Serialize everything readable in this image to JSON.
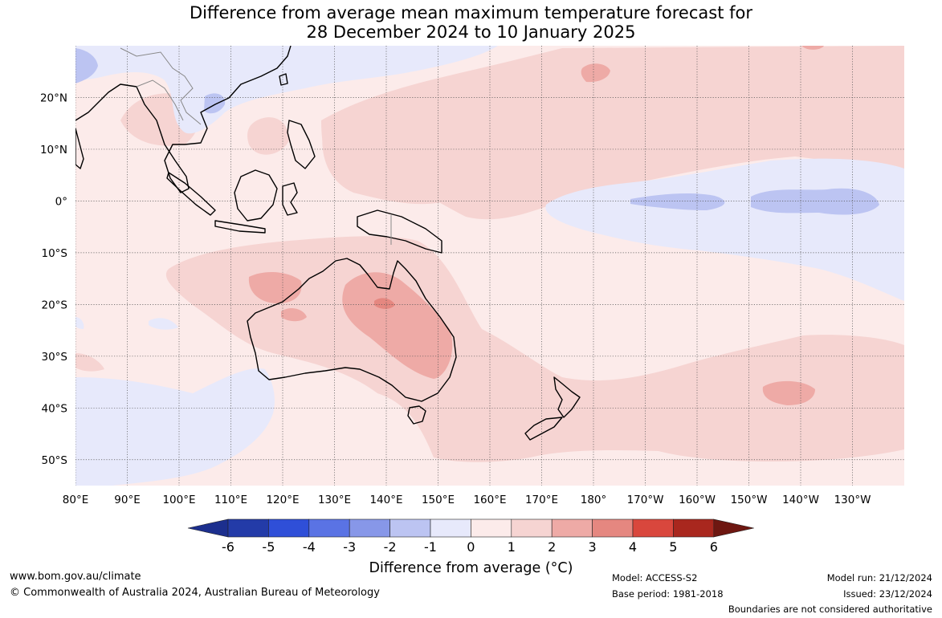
{
  "title": {
    "line1": "Difference from average mean maximum temperature forecast for",
    "line2": "28 December 2024 to 10 January 2025"
  },
  "map": {
    "lon_labels": [
      "80°E",
      "90°E",
      "100°E",
      "110°E",
      "120°E",
      "130°E",
      "140°E",
      "150°E",
      "160°E",
      "170°E",
      "180°",
      "170°W",
      "160°W",
      "150°W",
      "140°W",
      "130°W"
    ],
    "lat_labels": [
      "20°N",
      "10°N",
      "0°",
      "10°S",
      "20°S",
      "30°S",
      "40°S",
      "50°S"
    ],
    "extent": {
      "lon_min": 80,
      "lon_max": 240,
      "lat_min": -55,
      "lat_max": 30
    },
    "ocean_color": "#fcebea",
    "land_outline_color": "#000000"
  },
  "colorbar": {
    "labels": [
      "-6",
      "-5",
      "-4",
      "-3",
      "-2",
      "-1",
      "0",
      "1",
      "2",
      "3",
      "4",
      "5",
      "6"
    ],
    "colors": [
      "#1c2f8e",
      "#233ba8",
      "#2f4fd8",
      "#5a73e4",
      "#8797e8",
      "#bcc4f2",
      "#e7e9fb",
      "#fcebea",
      "#f6d4d2",
      "#eeaaa6",
      "#e58780",
      "#d9473d",
      "#a9271e",
      "#6e1711"
    ],
    "title": "Difference from average (°C)"
  },
  "footer": {
    "url": "www.bom.gov.au/climate",
    "copyright": "© Commonwealth of Australia 2024, Australian Bureau of Meteorology",
    "model": "Model: ACCESS-S2",
    "base_period": "Base period: 1981-2018",
    "model_run": "Model run: 21/12/2024",
    "issued": "Issued: 23/12/2024",
    "disclaimer": "Boundaries are not considered authoritative"
  }
}
